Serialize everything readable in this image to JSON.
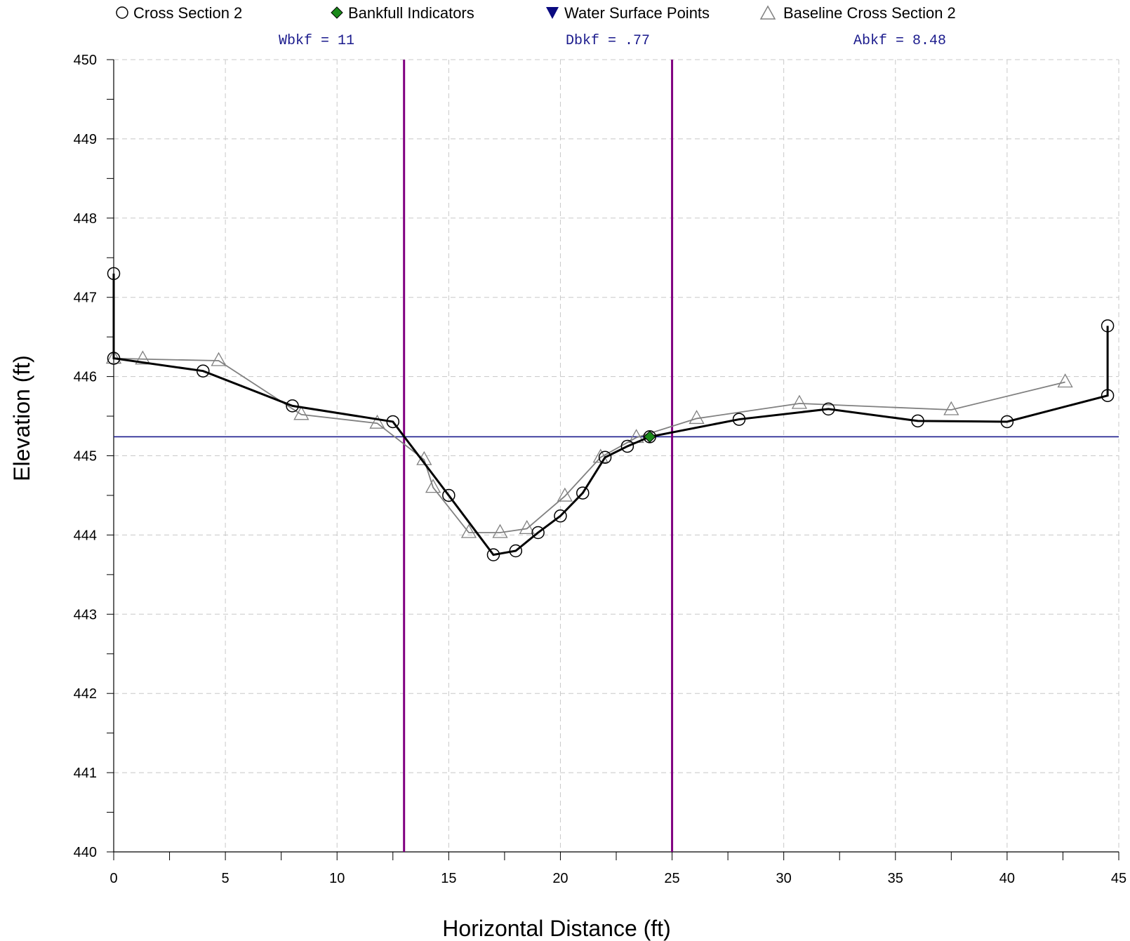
{
  "legend": [
    {
      "label": "Cross Section 2",
      "marker": "open-circle-icon",
      "color": "#000000"
    },
    {
      "label": "Bankfull Indicators",
      "marker": "filled-diamond-icon",
      "color": "#1a8a1a"
    },
    {
      "label": "Water Surface Points",
      "marker": "filled-down-triangle-icon",
      "color": "#0a0a80"
    },
    {
      "label": "Baseline Cross Section 2",
      "marker": "open-triangle-icon",
      "color": "#808080"
    }
  ],
  "stats": [
    {
      "text": "Wbkf = 11"
    },
    {
      "text": "Dbkf = .77"
    },
    {
      "text": "Abkf = 8.48"
    }
  ],
  "chart_data": {
    "type": "line",
    "xlabel": "Horizontal Distance (ft)",
    "ylabel": "Elevation (ft)",
    "xlim": [
      0,
      45
    ],
    "ylim": [
      440,
      450
    ],
    "xticks": [
      "0",
      "5",
      "10",
      "15",
      "20",
      "25",
      "30",
      "35",
      "40",
      "45"
    ],
    "yticks": [
      "440",
      "441",
      "442",
      "443",
      "444",
      "445",
      "446",
      "447",
      "448",
      "449",
      "450"
    ],
    "grid": true,
    "legend_position": "top",
    "series": [
      {
        "name": "Cross Section 2",
        "color": "#000000",
        "marker": "circle",
        "x": [
          0,
          0,
          4,
          8,
          12.5,
          15,
          17,
          18,
          19,
          20,
          21,
          22,
          23,
          24,
          28,
          32,
          36,
          40,
          44.5,
          44.5
        ],
        "y": [
          447.3,
          446.23,
          446.07,
          445.63,
          445.43,
          444.5,
          443.75,
          443.8,
          444.03,
          444.24,
          444.53,
          444.98,
          445.12,
          445.24,
          445.46,
          445.59,
          445.44,
          445.43,
          445.76,
          446.64
        ]
      },
      {
        "name": "Baseline Cross Section 2",
        "color": "#808080",
        "marker": "triangle",
        "x": [
          0,
          1.3,
          4.7,
          8.4,
          11.8,
          13.9,
          14.3,
          15.9,
          17.3,
          18.5,
          20.2,
          21.8,
          23.4,
          26.1,
          30.7,
          37.5,
          42.6
        ],
        "y": [
          446.23,
          446.22,
          446.2,
          445.52,
          445.41,
          444.95,
          444.6,
          444.03,
          444.03,
          444.08,
          444.49,
          444.98,
          445.23,
          445.47,
          445.66,
          445.58,
          445.93
        ]
      },
      {
        "name": "Bankfull Indicators",
        "color": "#1a8a1a",
        "marker": "diamond",
        "x": [
          24
        ],
        "y": [
          445.24
        ]
      }
    ],
    "water_surface_elevation": 445.24,
    "water_surface_color": "#1a1a8c",
    "bankfull_verticals_x": [
      13,
      25
    ],
    "bankfull_vertical_color": "#800080"
  }
}
